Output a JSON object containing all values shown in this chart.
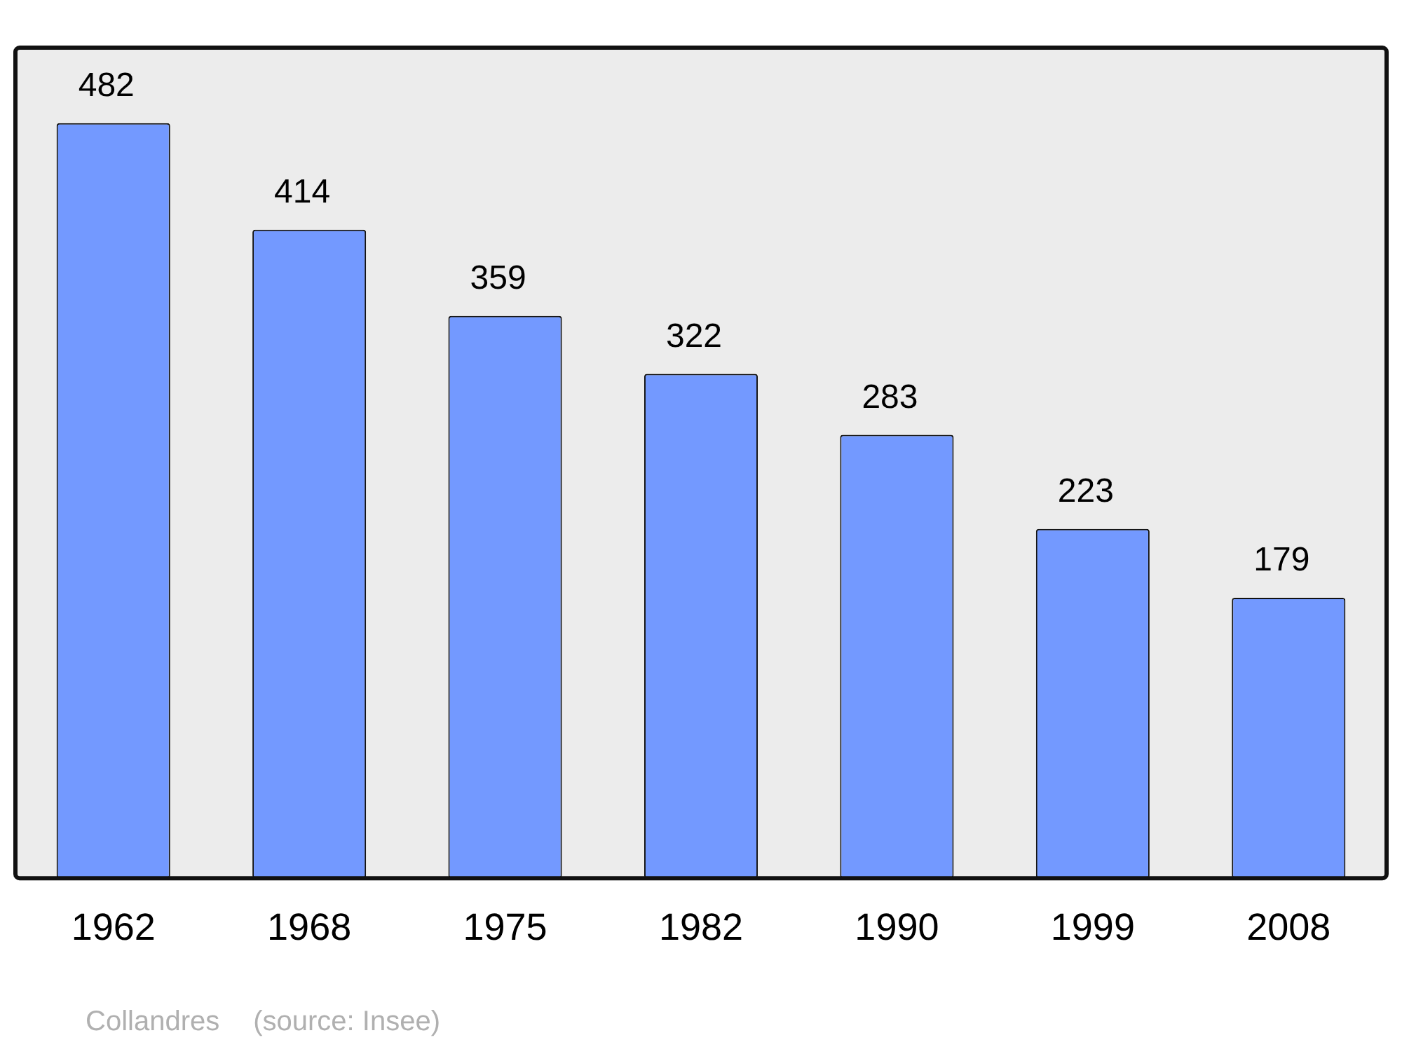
{
  "chart_data": {
    "type": "bar",
    "categories": [
      "1962",
      "1968",
      "1975",
      "1982",
      "1990",
      "1999",
      "2008"
    ],
    "values": [
      482,
      414,
      359,
      322,
      283,
      223,
      179
    ],
    "color": "#7399ff",
    "data_labels": true,
    "grid": false,
    "legend": false,
    "annotations": [
      "Collandres",
      "(source: Insee)"
    ]
  }
}
